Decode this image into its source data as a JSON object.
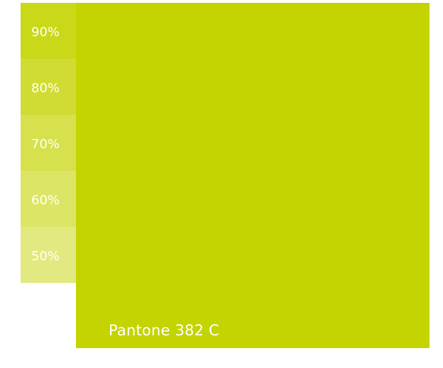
{
  "swatch": {
    "name": "Pantone 382 C",
    "color": "#c4d400"
  },
  "tints": [
    {
      "label": "90%",
      "color": "#cad81a"
    },
    {
      "label": "80%",
      "color": "#d0dc33"
    },
    {
      "label": "70%",
      "color": "#d6e14d"
    },
    {
      "label": "60%",
      "color": "#dce566"
    },
    {
      "label": "50%",
      "color": "#e1e980"
    }
  ]
}
